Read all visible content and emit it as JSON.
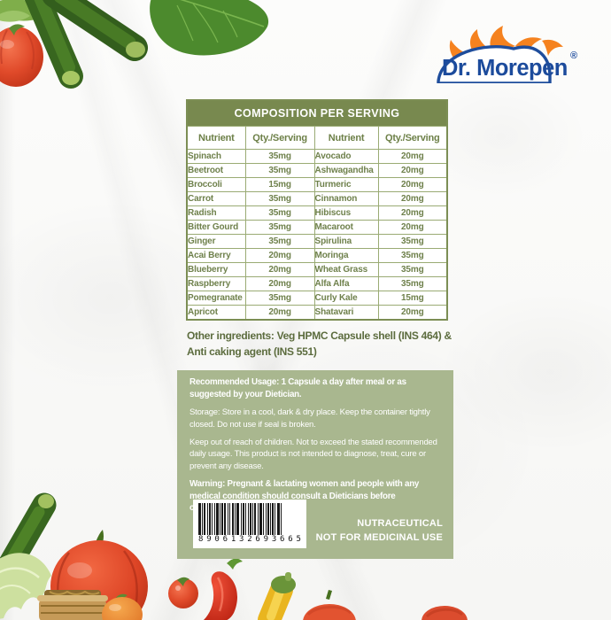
{
  "brand": {
    "logo_text": "Dr. Morepen",
    "registered_mark": "®"
  },
  "table": {
    "title": "COMPOSITION PER SERVING",
    "columns": [
      "Nutrient",
      "Qty./Serving",
      "Nutrient",
      "Qty./Serving"
    ],
    "rows": [
      [
        "Spinach",
        "35mg",
        "Avocado",
        "20mg"
      ],
      [
        "Beetroot",
        "35mg",
        "Ashwagandha",
        "20mg"
      ],
      [
        "Broccoli",
        "15mg",
        "Turmeric",
        "20mg"
      ],
      [
        "Carrot",
        "35mg",
        "Cinnamon",
        "20mg"
      ],
      [
        "Radish",
        "35mg",
        "Hibiscus",
        "20mg"
      ],
      [
        "Bitter Gourd",
        "35mg",
        "Macaroot",
        "20mg"
      ],
      [
        "Ginger",
        "35mg",
        "Spirulina",
        "35mg"
      ],
      [
        "Acai Berry",
        "20mg",
        "Moringa",
        "35mg"
      ],
      [
        "Blueberry",
        "20mg",
        "Wheat Grass",
        "35mg"
      ],
      [
        "Raspberry",
        "20mg",
        "Alfa Alfa",
        "35mg"
      ],
      [
        "Pomegranate",
        "35mg",
        "Curly Kale",
        "15mg"
      ],
      [
        "Apricot",
        "20mg",
        "Shatavari",
        "20mg"
      ]
    ]
  },
  "other_ingredients": "Other ingredients:  Veg HPMC Capsule shell (INS 464) & Anti caking agent (INS 551)",
  "info_box": {
    "recommended_usage": "Recommended Usage: 1 Capsule a day after meal or as suggested by your Dietician.",
    "storage": "Storage: Store in a cool, dark & dry place. Keep the container tightly closed. Do not use if seal is broken.",
    "caution": "Keep out of reach of children. Not to exceed the stated recommended daily usage. This product is not intended to diagnose, treat, cure or prevent any disease.",
    "warning": "Warning: Pregnant & lactating women and people with any medical condition should consult a Dieticians before consuming this product.",
    "barcode_number": "8906132693665",
    "classification_line1": "NUTRACEUTICAL",
    "classification_line2": "NOT FOR MEDICINAL USE"
  },
  "colors": {
    "table_header_green": "#78894f",
    "table_text_green": "#6f814c",
    "panel_green": "#a9b78f",
    "logo_blue": "#1c4b9c",
    "logo_orange": "#f5821f"
  }
}
